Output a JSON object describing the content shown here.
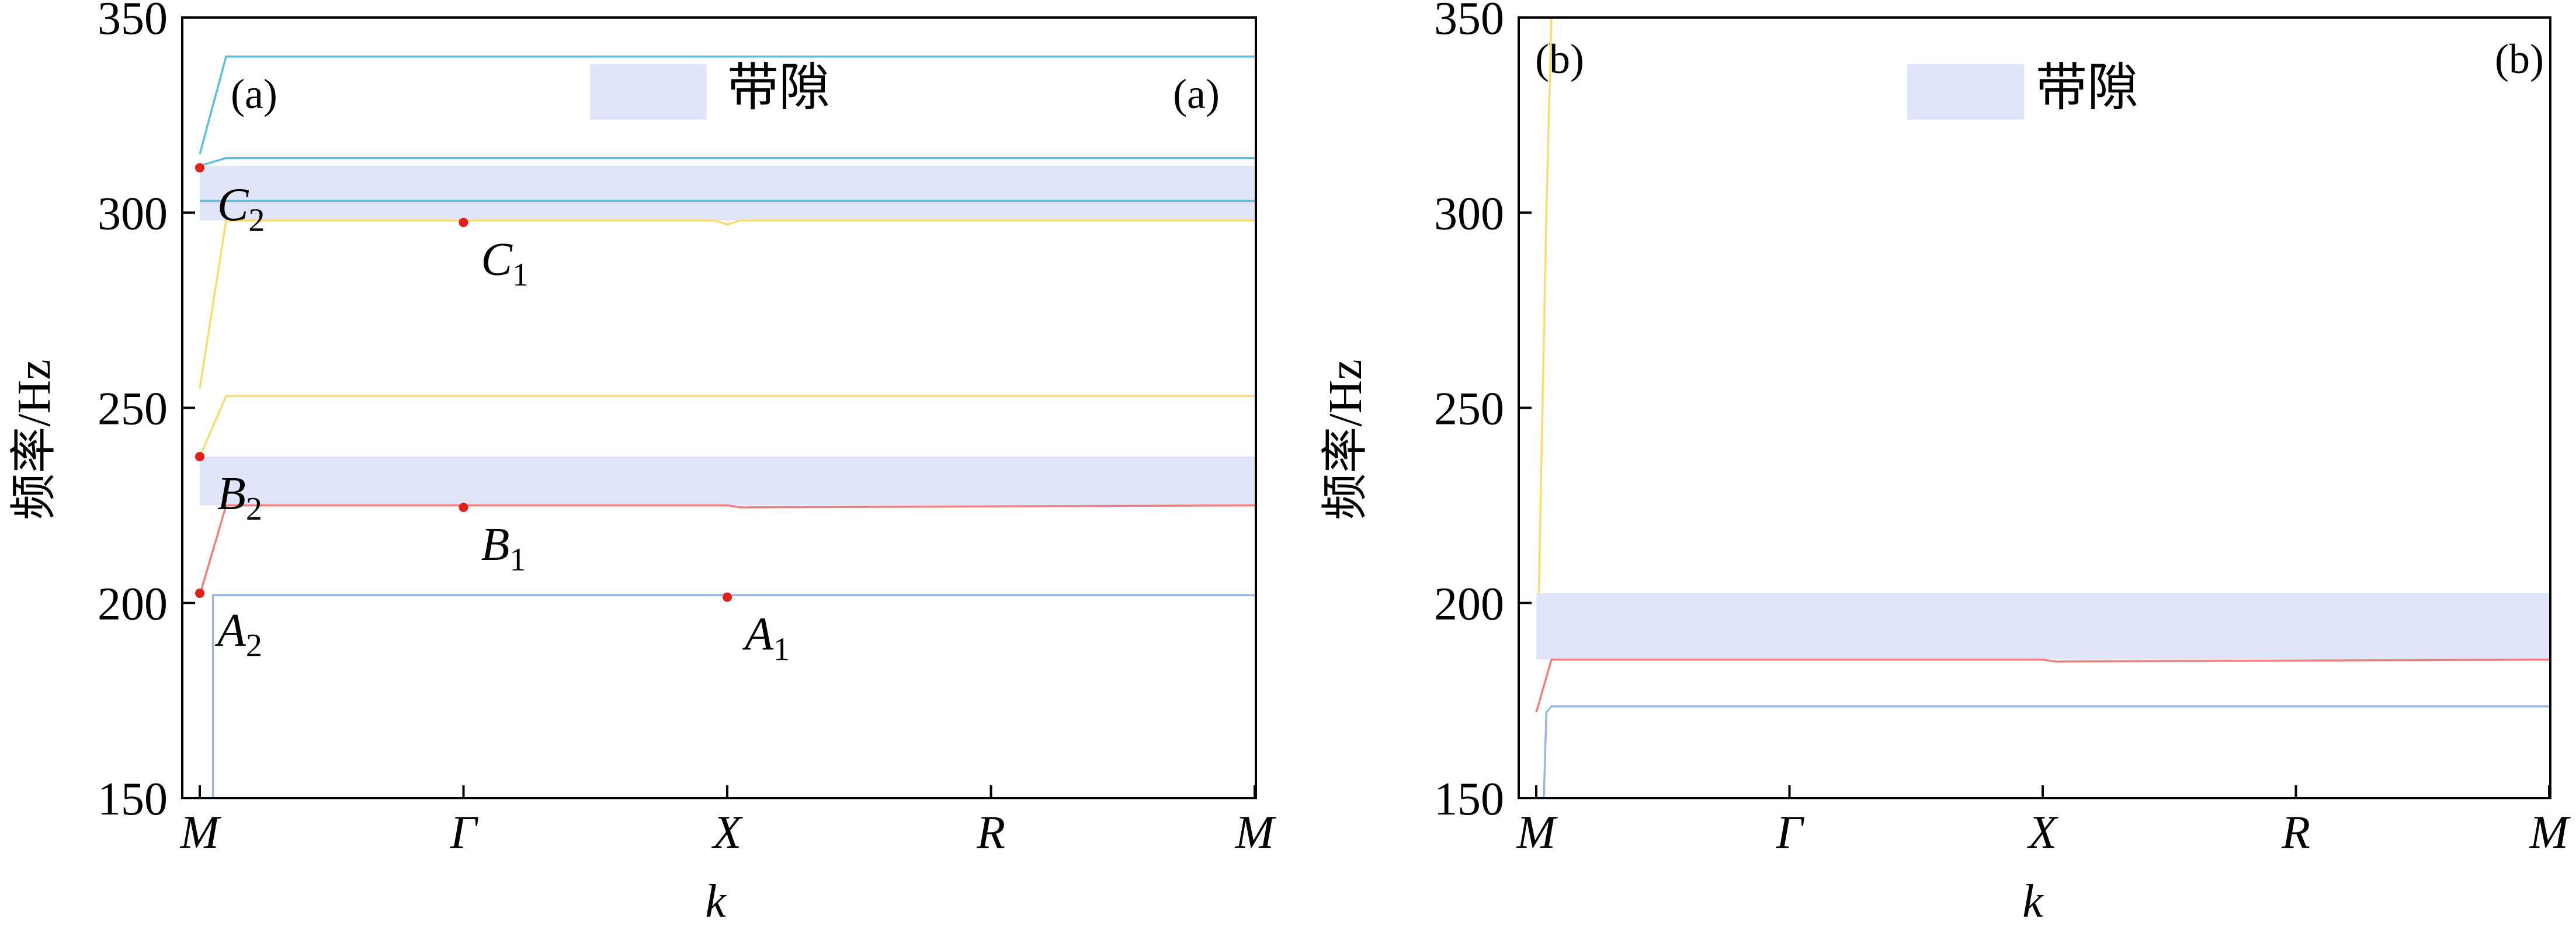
{
  "chart_data": [
    {
      "type": "line",
      "panel_label": "(a)",
      "ylabel": "频率/Hz",
      "xlabel": "k",
      "ylim": [
        150,
        350
      ],
      "yticks": [
        "150",
        "200",
        "250",
        "300",
        "350"
      ],
      "x_ticks": [
        "M",
        "Γ",
        "X",
        "R",
        "M"
      ],
      "legend": "带隙",
      "legend_position": "top-center",
      "band_gaps": [
        [
          225,
          237.5
        ],
        [
          298,
          312
        ]
      ],
      "series": [
        {
          "color": "#9bb7e2",
          "x": [
            0,
            0.05,
            0.05,
            4
          ],
          "y": [
            150,
            150,
            202,
            202
          ]
        },
        {
          "color": "#f08080",
          "x": [
            0,
            0.1,
            2,
            2.05,
            4
          ],
          "y": [
            202,
            225,
            225,
            224.5,
            225
          ]
        },
        {
          "color": "#f7dc6f",
          "x": [
            0,
            0.1,
            4
          ],
          "y": [
            237.5,
            253,
            253
          ]
        },
        {
          "color": "#f7dc6f",
          "x": [
            0,
            0.1,
            1.95,
            2,
            2.05,
            4
          ],
          "y": [
            255,
            298,
            298,
            297,
            298,
            298
          ]
        },
        {
          "color": "#5bc0de",
          "x": [
            0,
            0.1,
            4
          ],
          "y": [
            303,
            303,
            303
          ]
        },
        {
          "color": "#5bc0de",
          "x": [
            0,
            0.1,
            4
          ],
          "y": [
            312,
            314,
            314
          ]
        },
        {
          "color": "#5bc0de",
          "x": [
            0,
            0.1,
            4
          ],
          "y": [
            315,
            340,
            340
          ]
        }
      ],
      "points": [
        {
          "label": "A",
          "sub": "1",
          "x": 2.0,
          "y": 201.5
        },
        {
          "label": "A",
          "sub": "2",
          "x": 0.0,
          "y": 202.5
        },
        {
          "label": "B",
          "sub": "1",
          "x": 1.0,
          "y": 224.5
        },
        {
          "label": "B",
          "sub": "2",
          "x": 0.0,
          "y": 237.5
        },
        {
          "label": "C",
          "sub": "1",
          "x": 1.0,
          "y": 297.5
        },
        {
          "label": "C",
          "sub": "2",
          "x": 0.0,
          "y": 311.5
        }
      ]
    },
    {
      "type": "line",
      "panel_label": "(b)",
      "ylabel": "频率/Hz",
      "xlabel": "k",
      "ylim": [
        150,
        350
      ],
      "yticks": [
        "150",
        "200",
        "250",
        "300",
        "350"
      ],
      "x_ticks": [
        "M",
        "Γ",
        "X",
        "R",
        "M"
      ],
      "legend": "带隙",
      "legend_position": "top-center",
      "band_gaps": [
        [
          185.5,
          202.5
        ]
      ],
      "series": [
        {
          "color": "#9bb7e2",
          "x": [
            0.03,
            0.04,
            0.06,
            4
          ],
          "y": [
            150,
            172,
            173.5,
            173.5
          ]
        },
        {
          "color": "#f08080",
          "x": [
            0,
            0.06,
            2,
            2.05,
            4
          ],
          "y": [
            172,
            185.5,
            185.5,
            185,
            185.5
          ]
        },
        {
          "color": "#f7dc6f",
          "x": [
            0.01,
            0.04,
            0.06
          ],
          "y": [
            202.5,
            300,
            350
          ]
        }
      ],
      "points": []
    }
  ]
}
